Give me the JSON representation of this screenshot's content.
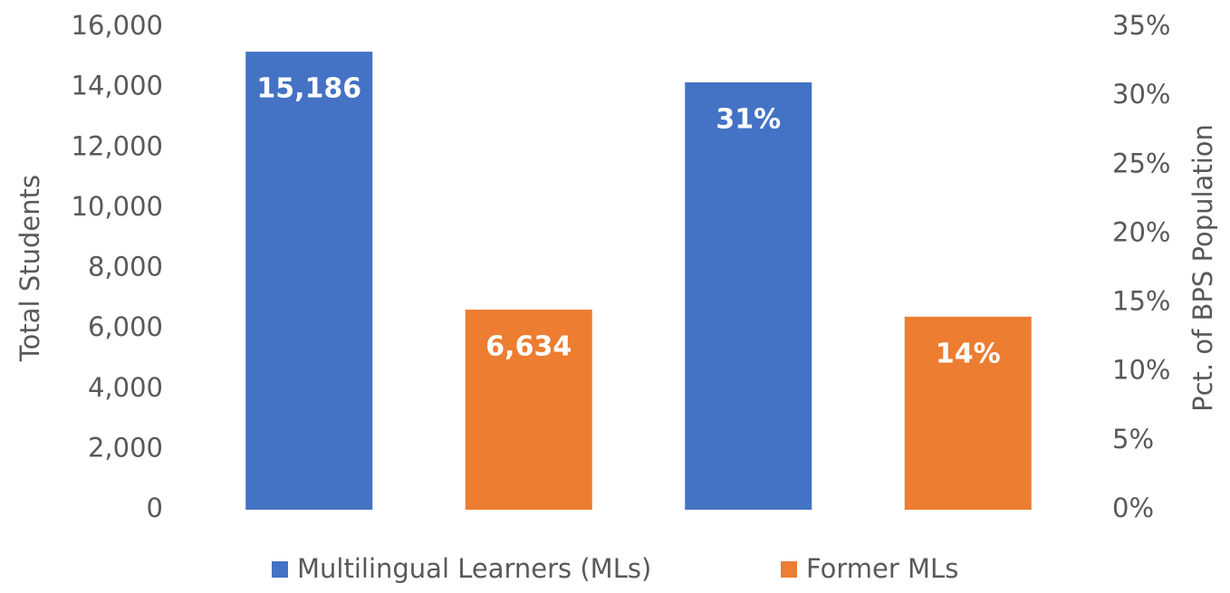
{
  "chart_data": {
    "type": "bar",
    "y_label": "Total Students",
    "y2_label": "Pct. of BPS Population",
    "categories": [
      null,
      null
    ],
    "category_axes": [
      "y",
      "y2"
    ],
    "series": [
      {
        "name": "Multilingual Learners (MLs)",
        "color": "#4472c4",
        "values": [
          15186,
          31
        ],
        "value_labels": [
          "15,186",
          "31%"
        ]
      },
      {
        "name": "Former MLs",
        "color": "#ed7d31",
        "values": [
          6634,
          14
        ],
        "value_labels": [
          "6,634",
          "14%"
        ]
      }
    ],
    "ylim": [
      0,
      16000
    ],
    "yticks": [
      0,
      {
        "value": 2000,
        "label": "2,000"
      },
      {
        "value": 4000,
        "label": "4,000"
      },
      {
        "value": 6000,
        "label": "6,000"
      },
      {
        "value": 8000,
        "label": "8,000"
      },
      {
        "value": 10000,
        "label": "10,000"
      },
      {
        "value": 12000,
        "label": "12,000"
      },
      {
        "value": 14000,
        "label": "14,000"
      },
      {
        "value": 16000,
        "label": "16,000"
      }
    ],
    "y2lim": [
      0,
      35
    ],
    "y2ticks": [
      {
        "value": 0,
        "label": "0%"
      },
      {
        "value": 5,
        "label": "5%"
      },
      {
        "value": 10,
        "label": "10%"
      },
      {
        "value": 15,
        "label": "15%"
      },
      {
        "value": 20,
        "label": "20%"
      },
      {
        "value": 25,
        "label": "25%"
      },
      {
        "value": 30,
        "label": "30%"
      },
      {
        "value": 35,
        "label": "35%"
      }
    ],
    "grid": false,
    "legend": "bottom"
  }
}
